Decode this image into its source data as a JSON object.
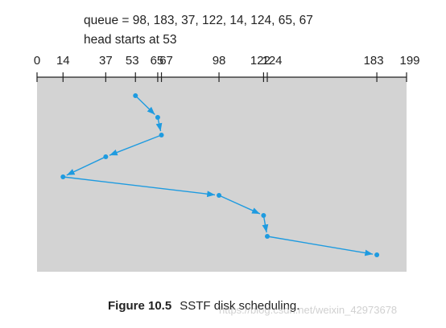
{
  "header": {
    "queue_line": "queue = 98, 183, 37, 122, 14, 124, 65, 67",
    "head_line": "head starts at 53"
  },
  "caption": {
    "figure_label": "Figure 10.5",
    "title": "SSTF disk scheduling."
  },
  "watermark": "https://blog.csdn.net/weixin_42973678",
  "chart_data": {
    "type": "line",
    "axis": {
      "min": 0,
      "max": 199,
      "ticks": [
        0,
        14,
        37,
        53,
        65,
        67,
        98,
        122,
        124,
        183,
        199
      ],
      "tick_labels": [
        "0",
        "14",
        "37",
        "53",
        "65",
        "67",
        "98",
        "122",
        "124",
        "183",
        "199"
      ]
    },
    "path": [
      53,
      65,
      67,
      37,
      14,
      98,
      122,
      124,
      183
    ],
    "colors": {
      "panel": "#d3d3d3",
      "line": "#1e9be0",
      "axis": "#222222"
    }
  }
}
